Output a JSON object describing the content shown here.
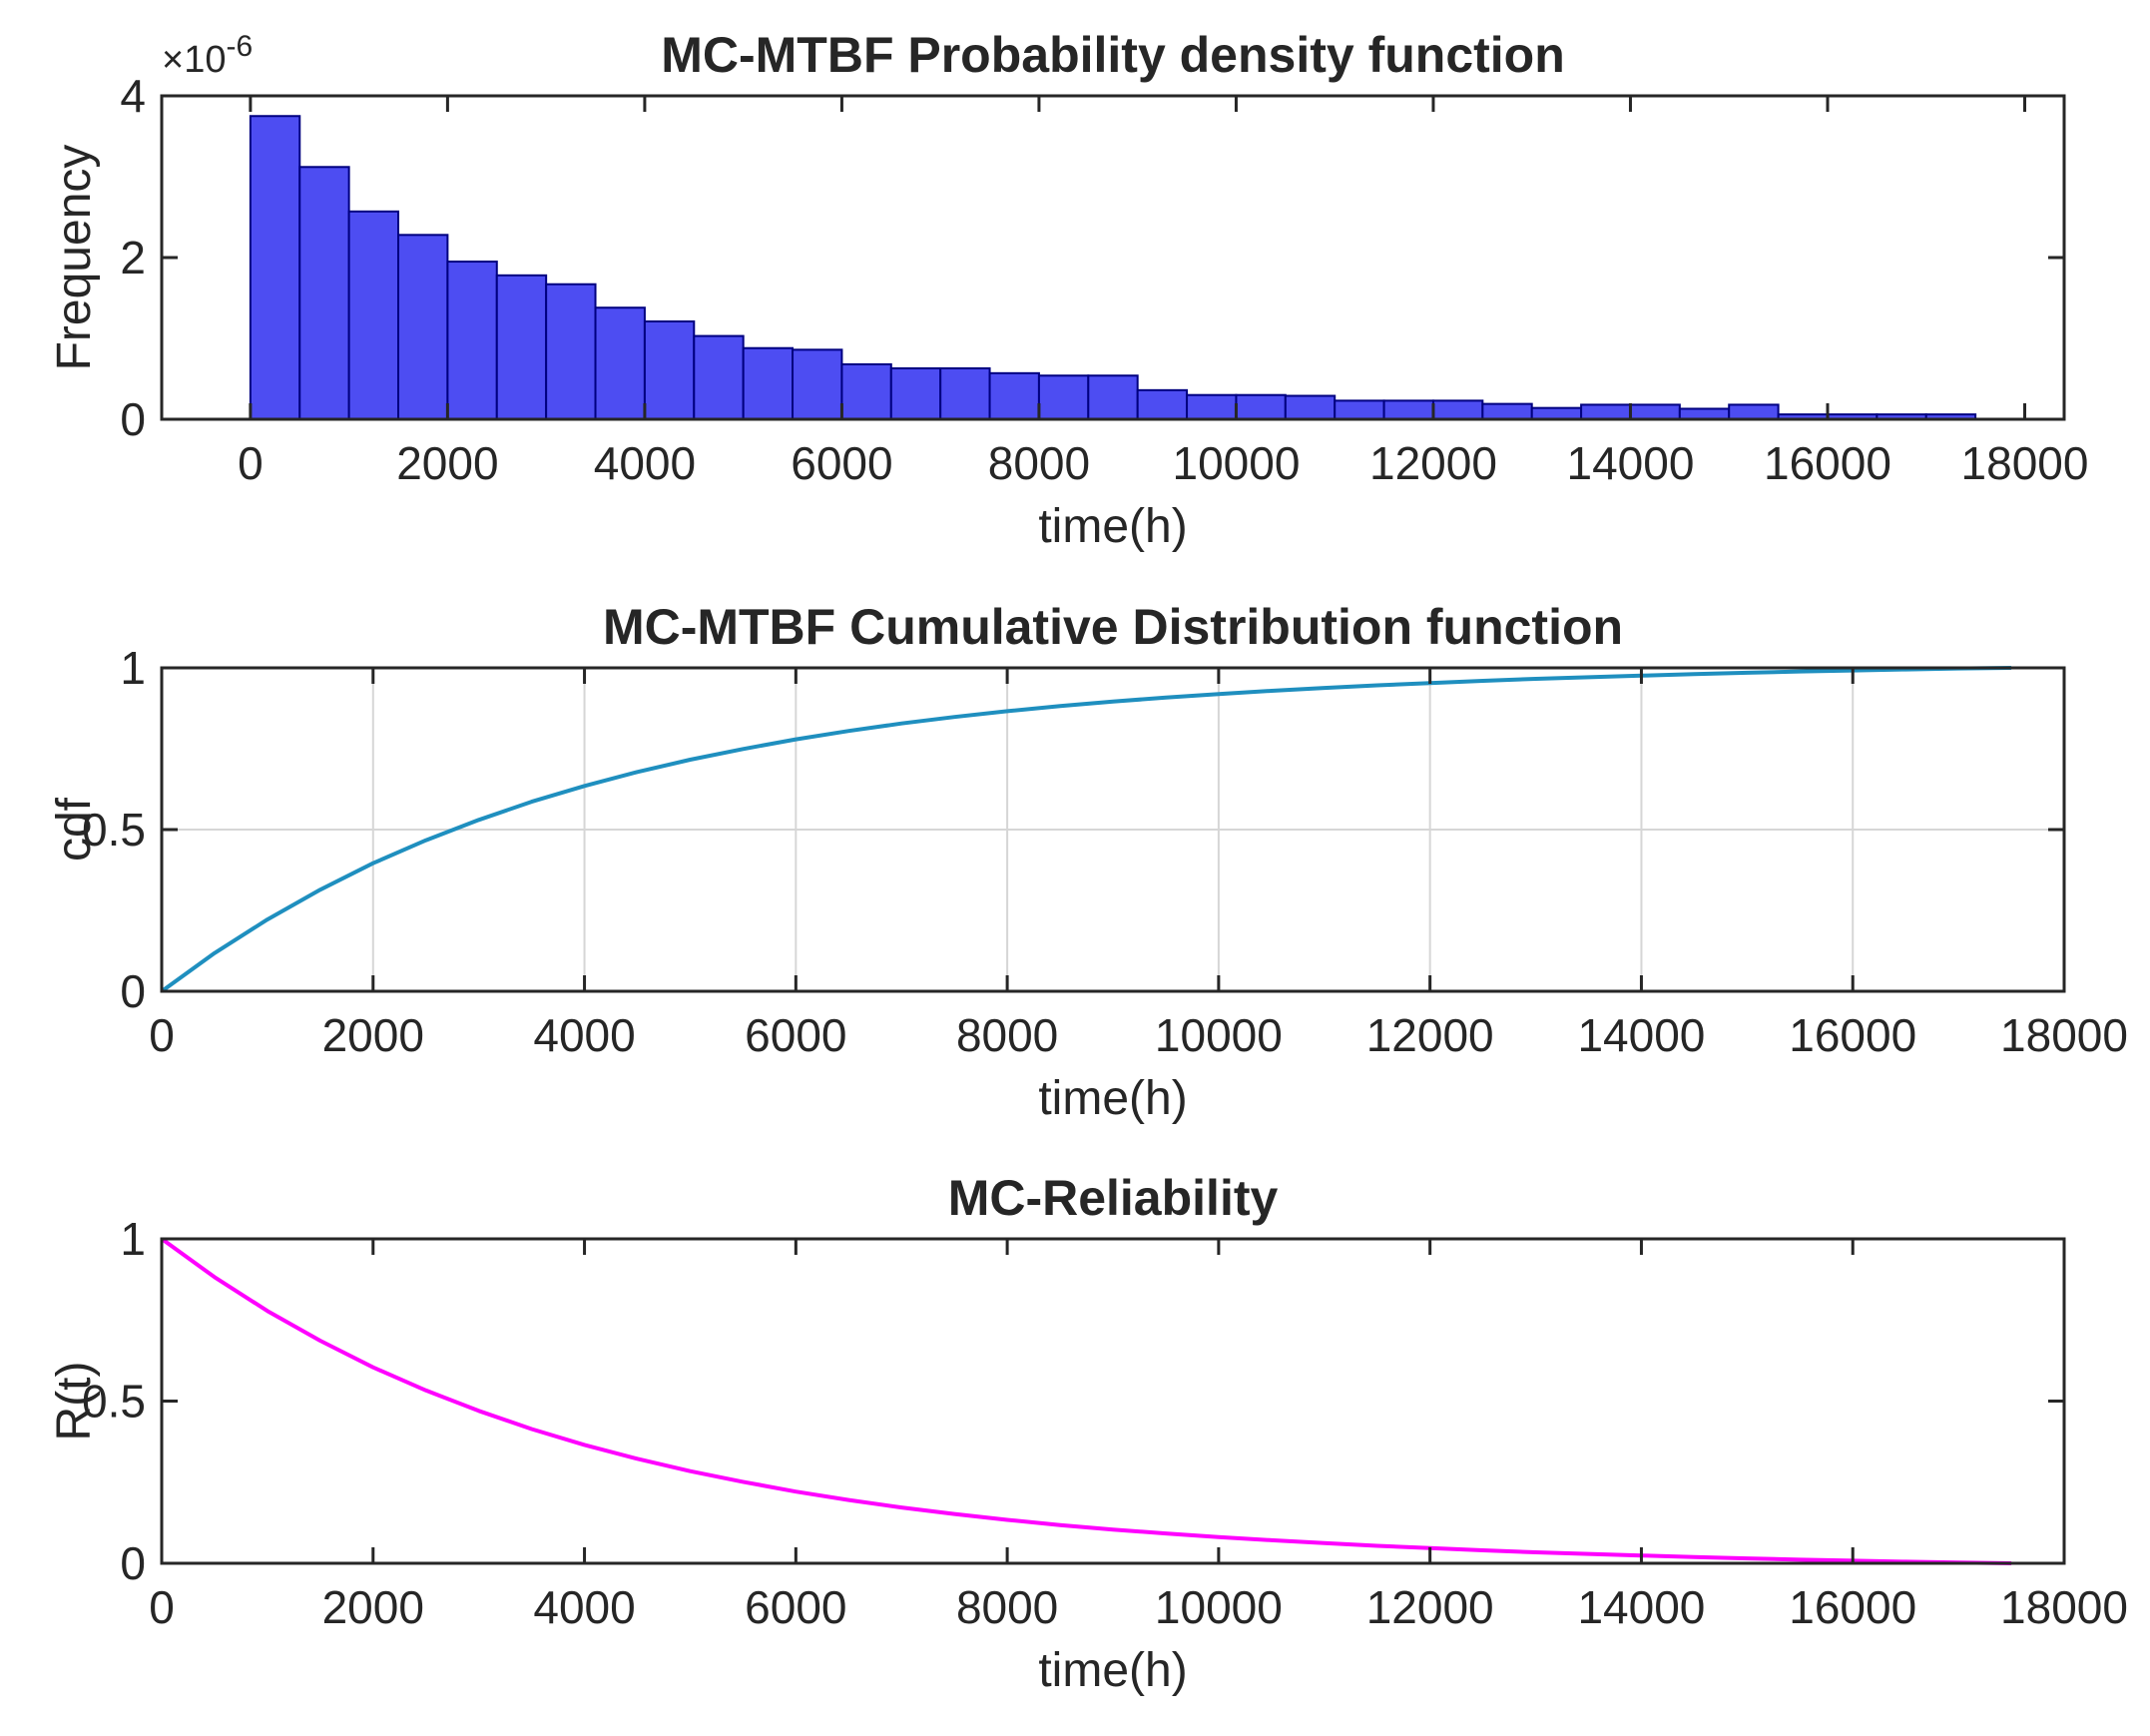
{
  "chart_data": [
    {
      "type": "bar",
      "title": "MC-MTBF Probability density function",
      "xlabel": "time(h)",
      "ylabel": "Frequency",
      "y_exponent": {
        "base": "×10",
        "power": "-6"
      },
      "xlim": [
        -900,
        18400
      ],
      "ylim": [
        0,
        4
      ],
      "xticks": [
        0,
        2000,
        4000,
        6000,
        8000,
        10000,
        12000,
        14000,
        16000,
        18000
      ],
      "yticks": [
        0,
        2,
        4
      ],
      "yticklabels": [
        "0",
        "2",
        "4"
      ],
      "grid": false,
      "bar_color": "#4d4df2",
      "bar_edge": "#000080",
      "bin_edges": [
        0,
        500,
        1000,
        1500,
        2000,
        2500,
        3000,
        3500,
        4000,
        4500,
        5000,
        5500,
        6000,
        6500,
        7000,
        7500,
        8000,
        8500,
        9000,
        9500,
        10000,
        10500,
        11000,
        11500,
        12000,
        12500,
        13000,
        13500,
        14000,
        14500,
        15000,
        15500,
        16000,
        16500,
        17000,
        17500
      ],
      "values": [
        3.75,
        3.12,
        2.57,
        2.28,
        1.95,
        1.78,
        1.67,
        1.38,
        1.21,
        1.03,
        0.88,
        0.86,
        0.68,
        0.63,
        0.63,
        0.57,
        0.54,
        0.54,
        0.36,
        0.3,
        0.3,
        0.29,
        0.23,
        0.23,
        0.23,
        0.19,
        0.14,
        0.18,
        0.18,
        0.13,
        0.18,
        0.06,
        0.06,
        0.06,
        0.06
      ]
    },
    {
      "type": "line",
      "title": "MC-MTBF Cumulative Distribution function",
      "xlabel": "time(h)",
      "ylabel": "cdf",
      "xlim": [
        0,
        18000
      ],
      "ylim": [
        0,
        1
      ],
      "xticks": [
        0,
        2000,
        4000,
        6000,
        8000,
        10000,
        12000,
        14000,
        16000,
        18000
      ],
      "yticks": [
        0,
        0.5,
        1
      ],
      "yticklabels": [
        "0",
        "0.5",
        "1"
      ],
      "grid": true,
      "color": "#1f8fbf",
      "x": [
        0,
        500,
        1000,
        1500,
        2000,
        2500,
        3000,
        3500,
        4000,
        4500,
        5000,
        5500,
        6000,
        6500,
        7000,
        7500,
        8000,
        8500,
        9000,
        9500,
        10000,
        10500,
        11000,
        11500,
        12000,
        12500,
        13000,
        13500,
        14000,
        14500,
        15000,
        15500,
        16000,
        16500,
        17000,
        17500
      ],
      "y": [
        0,
        0.118,
        0.222,
        0.314,
        0.396,
        0.467,
        0.53,
        0.586,
        0.635,
        0.678,
        0.716,
        0.749,
        0.779,
        0.805,
        0.828,
        0.848,
        0.866,
        0.882,
        0.896,
        0.908,
        0.919,
        0.929,
        0.938,
        0.946,
        0.953,
        0.96,
        0.966,
        0.971,
        0.976,
        0.981,
        0.985,
        0.989,
        0.992,
        0.995,
        0.998,
        1.0
      ]
    },
    {
      "type": "line",
      "title": "MC-Reliability",
      "xlabel": "time(h)",
      "ylabel": "R(t)",
      "xlim": [
        0,
        18000
      ],
      "ylim": [
        0,
        1
      ],
      "xticks": [
        0,
        2000,
        4000,
        6000,
        8000,
        10000,
        12000,
        14000,
        16000,
        18000
      ],
      "yticks": [
        0,
        0.5,
        1
      ],
      "yticklabels": [
        "0",
        "0.5",
        "1"
      ],
      "grid": false,
      "color": "#ff00ff",
      "x": [
        0,
        500,
        1000,
        1500,
        2000,
        2500,
        3000,
        3500,
        4000,
        4500,
        5000,
        5500,
        6000,
        6500,
        7000,
        7500,
        8000,
        8500,
        9000,
        9500,
        10000,
        10500,
        11000,
        11500,
        12000,
        12500,
        13000,
        13500,
        14000,
        14500,
        15000,
        15500,
        16000,
        16500,
        17000,
        17500
      ],
      "y": [
        1.0,
        0.882,
        0.778,
        0.686,
        0.604,
        0.533,
        0.47,
        0.414,
        0.365,
        0.322,
        0.284,
        0.251,
        0.221,
        0.195,
        0.172,
        0.152,
        0.134,
        0.118,
        0.104,
        0.092,
        0.081,
        0.071,
        0.062,
        0.054,
        0.047,
        0.04,
        0.034,
        0.029,
        0.024,
        0.019,
        0.015,
        0.011,
        0.008,
        0.005,
        0.002,
        0.0
      ]
    }
  ]
}
